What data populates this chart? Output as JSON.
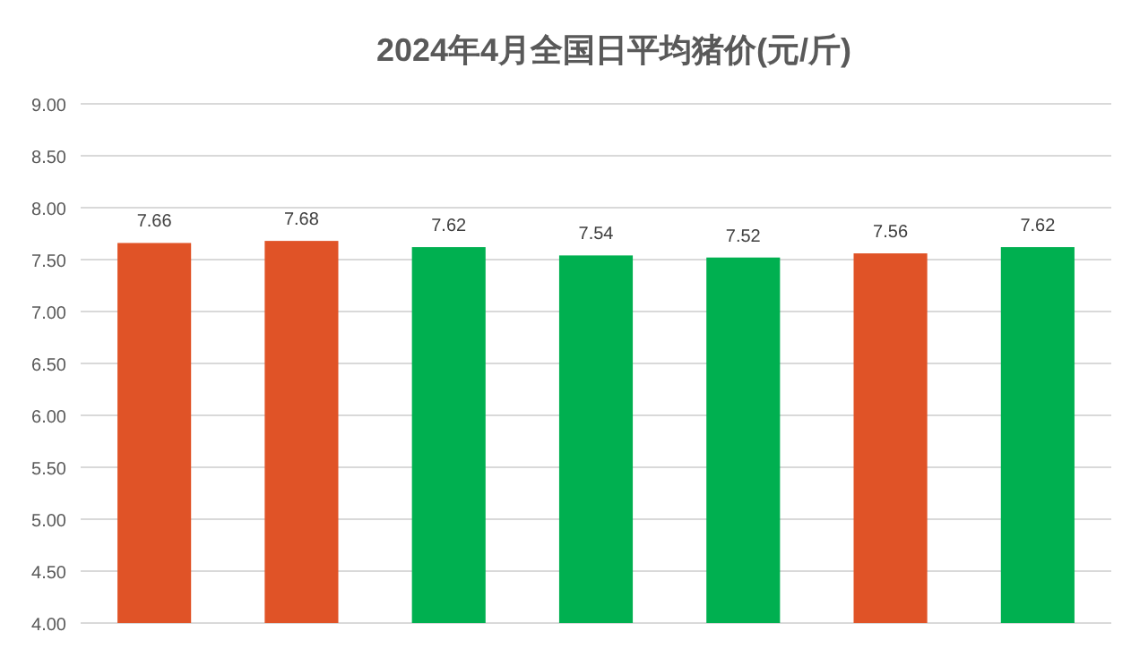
{
  "chart_data": {
    "type": "bar",
    "title": "2024年4月全国日平均猪价(元/斤)",
    "categories": [
      null,
      null,
      null,
      null,
      null,
      null,
      null
    ],
    "values": [
      7.66,
      7.68,
      7.62,
      7.54,
      7.52,
      7.56,
      7.62
    ],
    "colors": [
      "#e05327",
      "#e05327",
      "#00b050",
      "#00b050",
      "#00b050",
      "#e05327",
      "#00b050"
    ],
    "ylim": [
      4,
      9
    ],
    "yticks": [
      {
        "value": 4,
        "label": "4.00"
      },
      {
        "value": 4.5,
        "label": "4.50"
      },
      {
        "value": 5,
        "label": "5.00"
      },
      {
        "value": 5.5,
        "label": "5.50"
      },
      {
        "value": 6,
        "label": "6.00"
      },
      {
        "value": 6.5,
        "label": "6.50"
      },
      {
        "value": 7,
        "label": "7.00"
      },
      {
        "value": 7.5,
        "label": "7.50"
      },
      {
        "value": 8,
        "label": "8.00"
      },
      {
        "value": 8.5,
        "label": "8.50"
      },
      {
        "value": 9,
        "label": "9.00"
      }
    ],
    "grid": "y",
    "data_labels": true
  }
}
